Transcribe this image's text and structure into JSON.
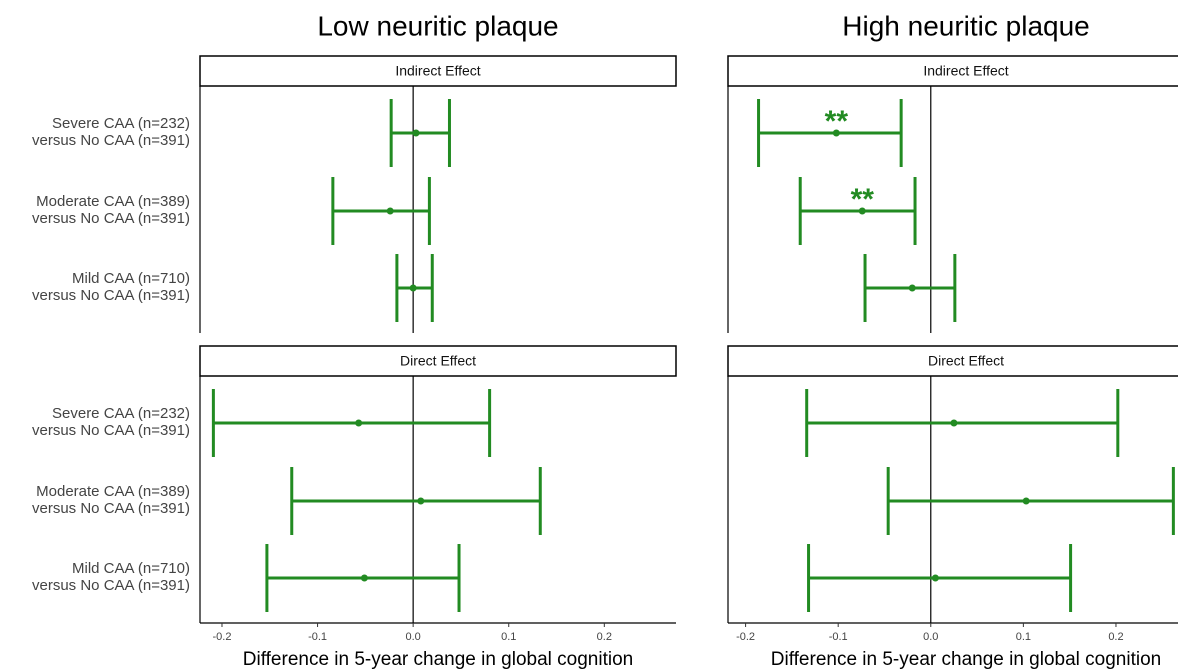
{
  "chart_data": [
    {
      "type": "forest",
      "title": "Low neuritic plaque",
      "xlabel": "Difference in 5-year change in global cognition",
      "xlim": [
        -0.223,
        0.275
      ],
      "xticks": [
        -0.2,
        -0.1,
        {
          "value": 0,
          "label": "0.0"
        },
        0.1,
        0.2
      ],
      "color": "#228b22",
      "panels": [
        {
          "strip": "Indirect Effect",
          "categories": [
            [
              "Severe CAA (n=232)",
              "versus No CAA (n=391)"
            ],
            [
              "Moderate CAA (n=389)",
              "versus No CAA (n=391)"
            ],
            [
              "Mild CAA (n=710)",
              "versus No CAA (n=391)"
            ]
          ],
          "values": [
            0.003,
            -0.024,
            0.0
          ],
          "lower": [
            -0.023,
            -0.084,
            -0.017
          ],
          "upper": [
            0.038,
            0.017,
            0.02
          ]
        },
        {
          "strip": "Direct Effect",
          "categories": [
            [
              "Severe CAA (n=232)",
              "versus No CAA (n=391)"
            ],
            [
              "Moderate CAA (n=389)",
              "versus No CAA (n=391)"
            ],
            [
              "Mild CAA (n=710)",
              "versus No CAA (n=391)"
            ]
          ],
          "values": [
            -0.057,
            0.008,
            -0.051
          ],
          "lower": [
            -0.209,
            -0.127,
            -0.153
          ],
          "upper": [
            0.08,
            0.133,
            0.048
          ]
        }
      ]
    },
    {
      "type": "forest",
      "title": "High neuritic plaque",
      "xlabel": "Difference in 5-year change in global cognition",
      "xlim": [
        -0.219,
        0.267
      ],
      "xticks": [
        -0.2,
        -0.1,
        {
          "value": 0,
          "label": "0.0"
        },
        0.1,
        0.2
      ],
      "color": "#228b22",
      "panels": [
        {
          "strip": "Indirect Effect",
          "values": [
            -0.102,
            -0.074,
            -0.02
          ],
          "lower": [
            -0.186,
            -0.141,
            -0.071
          ],
          "upper": [
            -0.032,
            -0.017,
            0.026
          ],
          "significance": [
            "**",
            "**",
            null
          ]
        },
        {
          "strip": "Direct Effect",
          "values": [
            0.025,
            0.103,
            0.005
          ],
          "lower": [
            -0.134,
            -0.046,
            -0.132
          ],
          "upper": [
            0.202,
            0.262,
            0.151
          ]
        }
      ]
    }
  ]
}
